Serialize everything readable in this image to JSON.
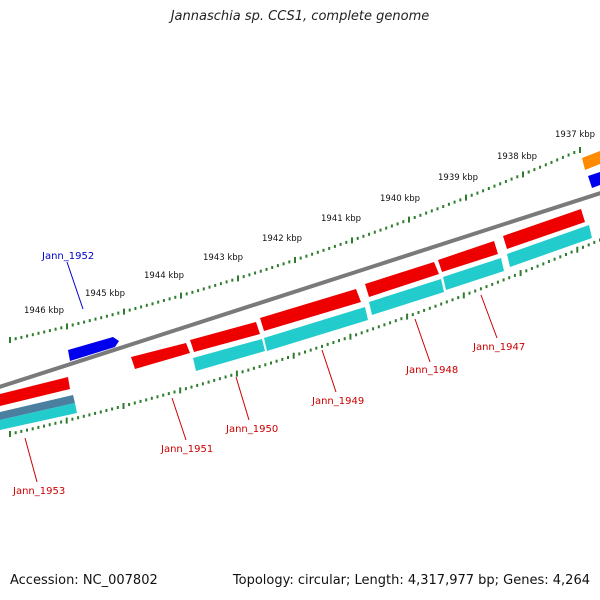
{
  "title": "Jannaschia sp. CCS1, complete genome",
  "footer": {
    "accession": "Accession: NC_007802",
    "summary": "Topology: circular; Length: 4,317,977 bp; Genes: 4,264"
  },
  "colors": {
    "background": "#ffffff",
    "backbone": "#7a7a7a",
    "gene_forward": "#ff0000",
    "gene_reverse": "#0000ee",
    "cds": "#22cccc",
    "cds_dark": "#4a7fa0",
    "other_gene": "#ff8c00",
    "tick": "#2e7d2e",
    "label_forward": "#cc0000",
    "label_reverse": "#0000cc"
  },
  "scale_labels": [
    "1937 kbp",
    "1938 kbp",
    "1939 kbp",
    "1940 kbp",
    "1941 kbp",
    "1942 kbp",
    "1943 kbp",
    "1944 kbp",
    "1945 kbp",
    "1946 kbp"
  ],
  "gene_labels": [
    {
      "name": "Jann_1952",
      "strand": "reverse"
    },
    {
      "name": "Jann_1951",
      "strand": "forward"
    },
    {
      "name": "Jann_1950",
      "strand": "forward"
    },
    {
      "name": "Jann_1949",
      "strand": "forward"
    },
    {
      "name": "Jann_1948",
      "strand": "forward"
    },
    {
      "name": "Jann_1947",
      "strand": "forward"
    },
    {
      "name": "Jann_1953",
      "strand": "forward"
    }
  ]
}
